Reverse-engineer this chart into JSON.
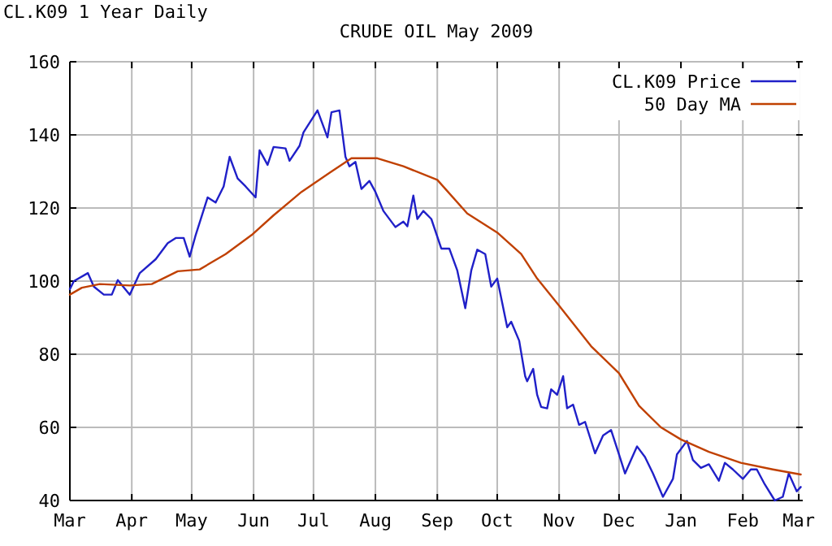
{
  "chart_data": {
    "type": "line",
    "title": "CRUDE OIL May 2009",
    "subtitle": "CL.K09 1 Year Daily",
    "xlim": [
      "2008-03-01",
      "2009-03-03"
    ],
    "xticks": [
      {
        "value": "2008-03-01",
        "label": "Mar"
      },
      {
        "value": "2008-04-01",
        "label": "Apr"
      },
      {
        "value": "2008-05-01",
        "label": "May"
      },
      {
        "value": "2008-06-01",
        "label": "Jun"
      },
      {
        "value": "2008-07-01",
        "label": "Jul"
      },
      {
        "value": "2008-08-01",
        "label": "Aug"
      },
      {
        "value": "2008-09-01",
        "label": "Sep"
      },
      {
        "value": "2008-10-01",
        "label": "Oct"
      },
      {
        "value": "2008-11-01",
        "label": "Nov"
      },
      {
        "value": "2008-12-01",
        "label": "Dec"
      },
      {
        "value": "2009-01-01",
        "label": "Jan"
      },
      {
        "value": "2009-02-01",
        "label": "Feb"
      },
      {
        "value": "2009-03-01",
        "label": "Mar"
      }
    ],
    "ylim": [
      40,
      160
    ],
    "yticks": [
      40,
      60,
      80,
      100,
      120,
      140,
      160
    ],
    "grid": true,
    "legend": "top right",
    "marker": "none",
    "line_style": "solid",
    "series": [
      {
        "name": "CL.K09 Price",
        "color": "#2020c8",
        "x": [
          "2008-03-01",
          "2008-03-03",
          "2008-03-10",
          "2008-03-13",
          "2008-03-18",
          "2008-03-22",
          "2008-03-25",
          "2008-03-31",
          "2008-04-05",
          "2008-04-13",
          "2008-04-19",
          "2008-04-23",
          "2008-04-27",
          "2008-04-30",
          "2008-05-03",
          "2008-05-09",
          "2008-05-13",
          "2008-05-17",
          "2008-05-20",
          "2008-05-24",
          "2008-05-28",
          "2008-06-02",
          "2008-06-04",
          "2008-06-08",
          "2008-06-11",
          "2008-06-17",
          "2008-06-19",
          "2008-06-24",
          "2008-06-26",
          "2008-07-03",
          "2008-07-08",
          "2008-07-10",
          "2008-07-14",
          "2008-07-17",
          "2008-07-19",
          "2008-07-22",
          "2008-07-25",
          "2008-07-29",
          "2008-08-01",
          "2008-08-05",
          "2008-08-11",
          "2008-08-15",
          "2008-08-17",
          "2008-08-20",
          "2008-08-22",
          "2008-08-25",
          "2008-08-29",
          "2008-09-03",
          "2008-09-07",
          "2008-09-11",
          "2008-09-15",
          "2008-09-18",
          "2008-09-21",
          "2008-09-25",
          "2008-09-28",
          "2008-10-01",
          "2008-10-06",
          "2008-10-08",
          "2008-10-12",
          "2008-10-15",
          "2008-10-16",
          "2008-10-19",
          "2008-10-21",
          "2008-10-23",
          "2008-10-26",
          "2008-10-28",
          "2008-10-31",
          "2008-11-03",
          "2008-11-05",
          "2008-11-08",
          "2008-11-11",
          "2008-11-14",
          "2008-11-19",
          "2008-11-23",
          "2008-11-27",
          "2008-12-01",
          "2008-12-04",
          "2008-12-07",
          "2008-12-10",
          "2008-12-14",
          "2008-12-18",
          "2008-12-23",
          "2008-12-28",
          "2008-12-30",
          "2009-01-04",
          "2009-01-07",
          "2009-01-11",
          "2009-01-15",
          "2009-01-20",
          "2009-01-23",
          "2009-01-27",
          "2009-02-01",
          "2009-02-05",
          "2009-02-08",
          "2009-02-12",
          "2009-02-17",
          "2009-02-21",
          "2009-02-24",
          "2009-02-28",
          "2009-03-02"
        ],
        "values": [
          97.8,
          100,
          102.2,
          98.5,
          96.3,
          96.3,
          100.3,
          96.3,
          102.2,
          106,
          110.4,
          111.8,
          111.8,
          106.7,
          112.6,
          122.9,
          121.5,
          125.9,
          134,
          128.1,
          125.9,
          122.9,
          135.8,
          131.8,
          136.7,
          136.3,
          132.9,
          137,
          140.7,
          146.7,
          139.3,
          146.2,
          146.7,
          134,
          131.4,
          132.6,
          125.2,
          127.4,
          124.4,
          119.2,
          114.8,
          116.3,
          115,
          123.4,
          117,
          119.2,
          117,
          108.9,
          108.9,
          102.9,
          92.6,
          102.9,
          108.6,
          107.4,
          98.5,
          100.7,
          87.4,
          88.9,
          83.7,
          74,
          72.6,
          76,
          68.9,
          65.6,
          65.2,
          70.4,
          68.9,
          74,
          65.2,
          66.2,
          60.7,
          61.5,
          52.9,
          57.8,
          59.3,
          52.6,
          47.4,
          51.1,
          54.8,
          51.9,
          47.4,
          41,
          45.9,
          52.6,
          56.3,
          51.1,
          48.9,
          49.9,
          45.4,
          50.3,
          48.5,
          45.9,
          48.5,
          48.5,
          44.4,
          40,
          41,
          47.4,
          42.5,
          43.7
        ]
      },
      {
        "name": "50 Day MA",
        "color": "#c04000",
        "x": [
          "2008-03-01",
          "2008-03-07",
          "2008-03-16",
          "2008-03-31",
          "2008-04-11",
          "2008-04-24",
          "2008-05-05",
          "2008-05-18",
          "2008-05-31",
          "2008-06-11",
          "2008-06-25",
          "2008-07-09",
          "2008-07-20",
          "2008-08-02",
          "2008-08-15",
          "2008-09-01",
          "2008-09-16",
          "2008-10-01",
          "2008-10-13",
          "2008-10-21",
          "2008-11-01",
          "2008-11-17",
          "2008-12-01",
          "2008-12-11",
          "2008-12-22",
          "2009-01-01",
          "2009-01-15",
          "2009-01-31",
          "2009-02-16",
          "2009-03-02"
        ],
        "values": [
          96.3,
          98.2,
          99.2,
          98.8,
          99.2,
          102.7,
          103.2,
          107.4,
          112.6,
          118,
          124.4,
          129.6,
          133.6,
          133.6,
          131.4,
          127.7,
          118.5,
          113.3,
          107.4,
          100.7,
          93.3,
          82.2,
          74.8,
          65.9,
          60,
          56.7,
          53.3,
          50.3,
          48.5,
          47.1
        ]
      }
    ]
  }
}
